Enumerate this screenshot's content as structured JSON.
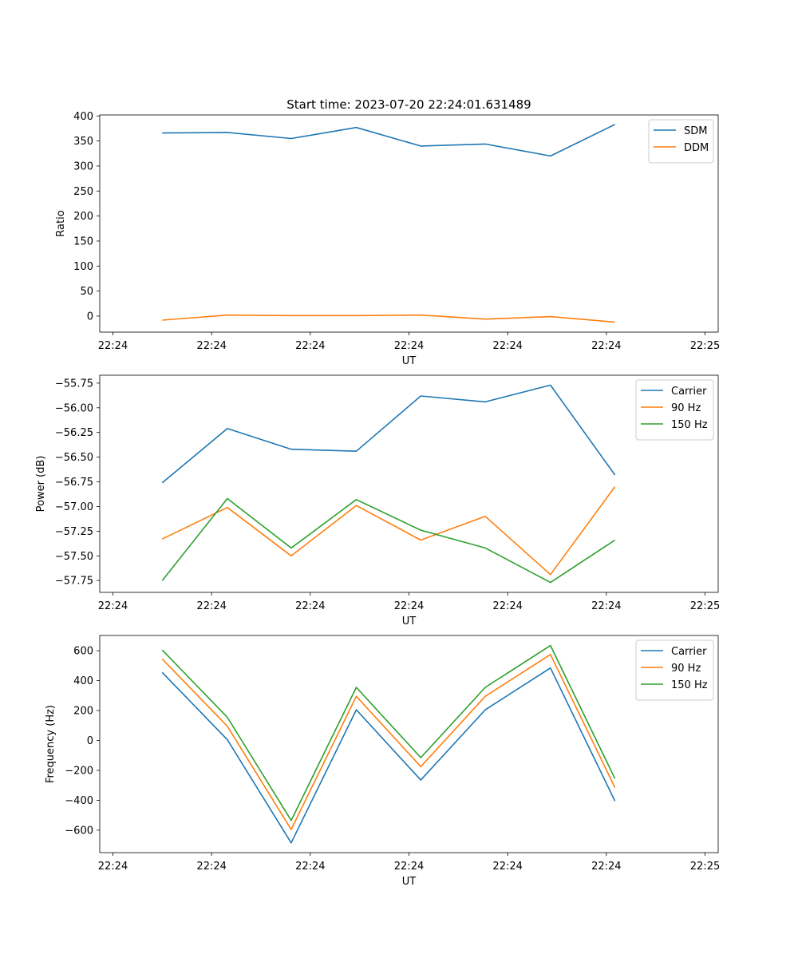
{
  "figure": {
    "title": "Start time: 2023-07-20 22:24:01.631489"
  },
  "chart_data": [
    {
      "type": "line",
      "ylabel": "Ratio",
      "xlabel": "UT",
      "xlim": [
        -0.2,
        9.2
      ],
      "xticks": [
        0,
        1.5,
        3,
        4.5,
        6,
        7.5,
        9
      ],
      "xtick_labels": [
        "22:24",
        "22:24",
        "22:24",
        "22:24",
        "22:24",
        "22:24",
        "22:25"
      ],
      "ylim": [
        -32,
        402
      ],
      "yticks": [
        0,
        50,
        100,
        150,
        200,
        250,
        300,
        350,
        400
      ],
      "ytick_labels": [
        "0",
        "50",
        "100",
        "150",
        "200",
        "250",
        "300",
        "350",
        "400"
      ],
      "legend_position": "top-right",
      "x": [
        0.75,
        1.74,
        2.71,
        3.7,
        4.68,
        5.66,
        6.65,
        7.63
      ],
      "series": [
        {
          "name": "SDM",
          "color": "#1f77b4",
          "values": [
            366,
            367,
            355,
            377,
            340,
            344,
            320,
            383
          ]
        },
        {
          "name": "DDM",
          "color": "#ff7f0e",
          "values": [
            -8,
            2,
            1,
            1,
            2,
            -6,
            -1,
            -12
          ]
        }
      ]
    },
    {
      "type": "line",
      "ylabel": "Power (dB)",
      "xlabel": "UT",
      "xlim": [
        -0.2,
        9.2
      ],
      "xticks": [
        0,
        1.5,
        3,
        4.5,
        6,
        7.5,
        9
      ],
      "xtick_labels": [
        "22:24",
        "22:24",
        "22:24",
        "22:24",
        "22:24",
        "22:24",
        "22:25"
      ],
      "ylim": [
        -57.87,
        -55.67
      ],
      "yticks": [
        -57.75,
        -57.5,
        -57.25,
        -57.0,
        -56.75,
        -56.5,
        -56.25,
        -56.0,
        -55.75
      ],
      "ytick_labels": [
        "−57.75",
        "−57.50",
        "−57.25",
        "−57.00",
        "−56.75",
        "−56.50",
        "−56.25",
        "−56.00",
        "−55.75"
      ],
      "legend_position": "top-right",
      "x": [
        0.75,
        1.74,
        2.71,
        3.7,
        4.68,
        5.66,
        6.65,
        7.63
      ],
      "series": [
        {
          "name": "Carrier",
          "color": "#1f77b4",
          "values": [
            -56.76,
            -56.21,
            -56.42,
            -56.44,
            -55.88,
            -55.94,
            -55.77,
            -56.68
          ]
        },
        {
          "name": "90 Hz",
          "color": "#ff7f0e",
          "values": [
            -57.33,
            -57.01,
            -57.5,
            -56.99,
            -57.34,
            -57.1,
            -57.69,
            -56.8
          ]
        },
        {
          "name": "150 Hz",
          "color": "#2ca02c",
          "values": [
            -57.75,
            -56.92,
            -57.42,
            -56.93,
            -57.24,
            -57.42,
            -57.77,
            -57.34
          ]
        }
      ]
    },
    {
      "type": "line",
      "ylabel": "Frequency (Hz)",
      "xlabel": "UT",
      "xlim": [
        -0.2,
        9.2
      ],
      "xticks": [
        0,
        1.5,
        3,
        4.5,
        6,
        7.5,
        9
      ],
      "xtick_labels": [
        "22:24",
        "22:24",
        "22:24",
        "22:24",
        "22:24",
        "22:24",
        "22:25"
      ],
      "ylim": [
        -750,
        702
      ],
      "yticks": [
        -600,
        -400,
        -200,
        0,
        200,
        400,
        600
      ],
      "ytick_labels": [
        "−600",
        "−400",
        "−200",
        "0",
        "200",
        "400",
        "600"
      ],
      "legend_position": "top-right",
      "x": [
        0.75,
        1.74,
        2.71,
        3.7,
        4.68,
        5.66,
        6.65,
        7.63
      ],
      "series": [
        {
          "name": "Carrier",
          "color": "#1f77b4",
          "values": [
            455,
            5,
            -685,
            205,
            -265,
            205,
            485,
            -405
          ]
        },
        {
          "name": "90 Hz",
          "color": "#ff7f0e",
          "values": [
            545,
            95,
            -595,
            295,
            -175,
            295,
            575,
            -315
          ]
        },
        {
          "name": "150 Hz",
          "color": "#2ca02c",
          "values": [
            605,
            155,
            -535,
            355,
            -115,
            355,
            635,
            -255
          ]
        }
      ]
    }
  ]
}
